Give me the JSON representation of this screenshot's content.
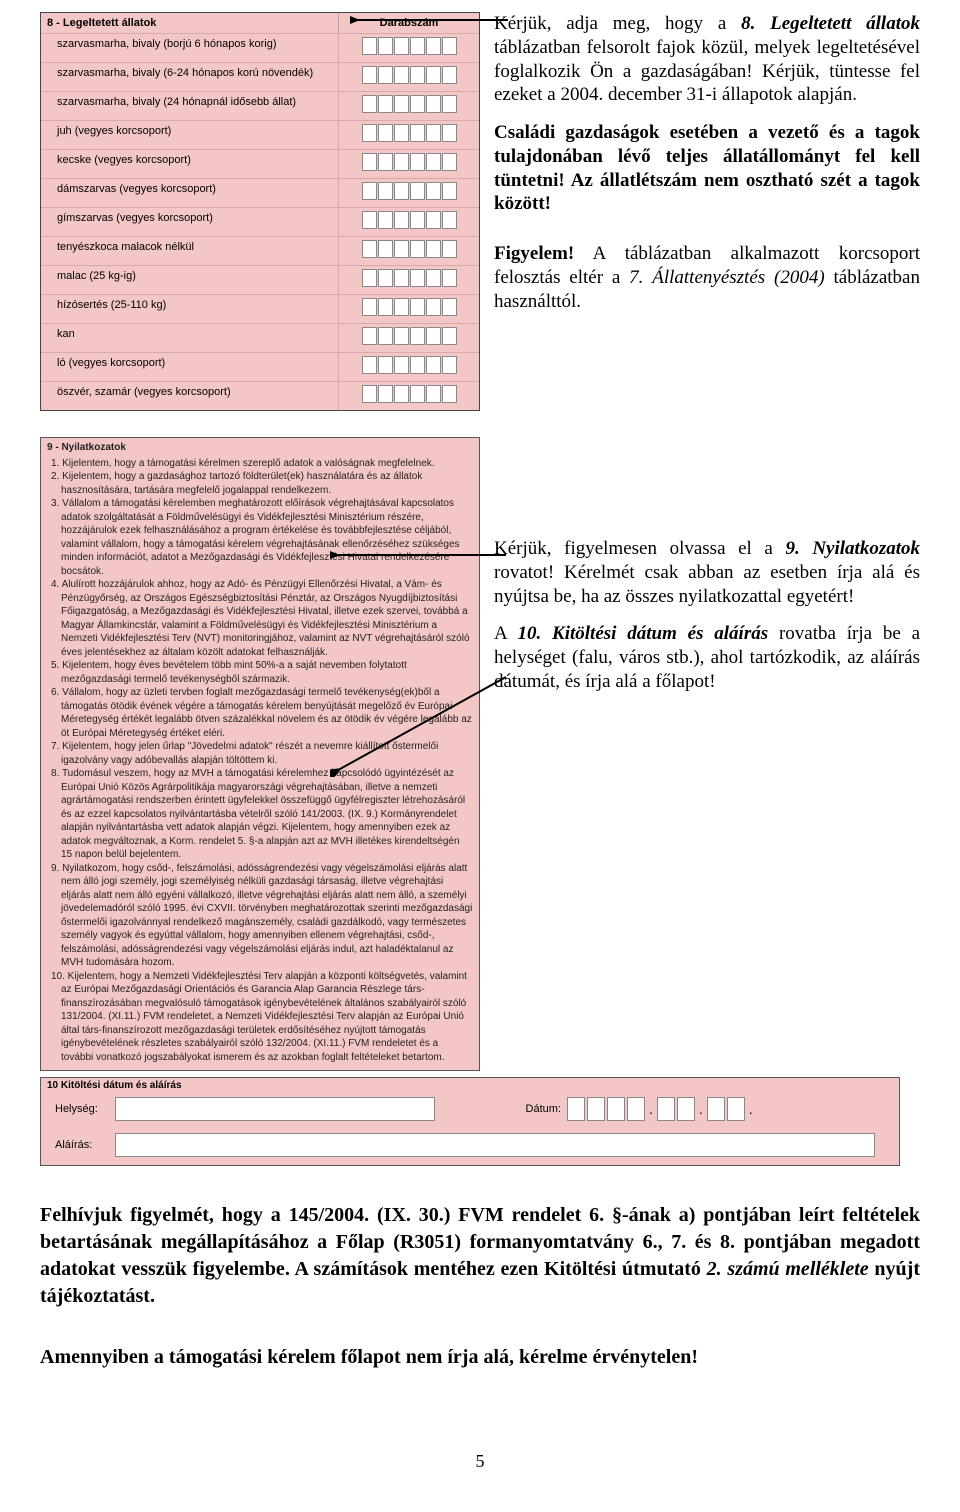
{
  "table8": {
    "title": "8 - Legeltetett állatok",
    "colhead": "Darabszám",
    "digits_per_row": 6,
    "rows": [
      "szarvasmarha, bivaly (borjú 6 hónapos korig)",
      "szarvasmarha, bivaly (6-24 hónapos korú növendék)",
      "szarvasmarha, bivaly (24 hónapnál idősebb állat)",
      "juh (vegyes korcsoport)",
      "kecske (vegyes korcsoport)",
      "dámszarvas (vegyes korcsoport)",
      "gímszarvas (vegyes korcsoport)",
      "tenyészkoca malacok nélkül",
      "malac (25 kg-ig)",
      "hízósertés (25-110 kg)",
      "kan",
      "ló (vegyes korcsoport)",
      "öszvér, szamár (vegyes korcsoport)"
    ]
  },
  "intro": {
    "p1a": "Kérjük, adja meg, hogy a ",
    "p1b": "8. Legeltetett állatok",
    "p1c": " táblázatban felsorolt fajok közül, melyek legeltetésével foglalkozik Ön a gazdaságában! Kérjük, tüntesse fel ezeket a 2004. december 31-i állapotok alapján.",
    "p2a": "Családi gazdaságok esetében a vezető és a tagok tulajdonában lévő teljes állatállományt fel kell tüntetni! Az állatlétszám nem osztható szét a tagok között!",
    "p3a": "Figyelem!",
    "p3b": " A táblázatban alkalmazott korcsoport felosztás eltér a ",
    "p3c": "7. Állattenyésztés (2004)",
    "p3d": " táblázatban használttól."
  },
  "nyil": {
    "section_title": "9 - Nyilatkozatok",
    "items": [
      "1. Kijelentem, hogy a támogatási kérelmen szereplő adatok a valóságnak megfelelnek.",
      "2. Kijelentem, hogy a gazdasághoz tartozó földterület(ek) használatára és az állatok hasznosítására, tartására megfelelő jogalappal rendelkezem.",
      "3. Vállalom a támogatási kérelemben meghatározott előírások végrehajtásával kapcsolatos adatok szolgáltatását a Földművelésügyi és Vidékfejlesztési Minisztérium részére, hozzájárulok ezek felhasználásához a program értékelése és továbbfejlesztése céljából, valamint vállalom, hogy a támogatási kérelem végrehajtásának ellenőrzéséhez szükséges minden információt, adatot a Mezőgazdasági és Vidékfejlesztési Hivatal rendelkezésére bocsátok.",
      "4. Alulírott hozzájárulok ahhoz, hogy az Adó- és Pénzügyi Ellenőrzési Hivatal, a Vám- és Pénzügyőrség, az Országos Egészségbiztosítási Pénztár, az Országos Nyugdíjbiztosítási Főigazgatóság, a Mezőgazdasági és Vidékfejlesztési Hivatal, illetve ezek szervei, továbbá a Magyar Államkincstár, valamint a Földművelésügyi és Vidékfejlesztési Minisztérium a Nemzeti Vidékfejlesztési Terv (NVT) monitoringjához, valamint az NVT végrehajtásáról szóló éves jelentésekhez az általam közölt adatokat felhasználják.",
      "5. Kijelentem, hogy éves bevételem több mint 50%-a a saját nevemben folytatott mezőgazdasági termelő tevékenységből származik.",
      "6. Vállalom, hogy az üzleti tervben foglalt mezőgazdasági termelő tevékenység(ek)ből a támogatás ötödik évének végére a támogatás kérelem benyújtását megelőző év Európai Méretegység értékét legalább ötven százalékkal növelem és az ötödik év végére legalább az öt Európai Méretegység értéket eléri.",
      "7. Kijelentem, hogy jelen űrlap \"Jövedelmi adatok\" részét a nevemre kiállított őstermelői igazolvány vagy adóbevallás alapján töltöttem ki.",
      "8. Tudomásul veszem, hogy az MVH a támogatási kérelemhez kapcsolódó ügyintézését az Európai Unió Közös Agrárpolitikája magyarországi végrehajtásában, illetve a nemzeti agrártámogatási rendszerben érintett ügyfelekkel összefüggő ügyfélregiszter létrehozásáról és az ezzel kapcsolatos nyilvántartásba vételről szóló 141/2003. (IX. 9.) Kormányrendelet alapján nyilvántartásba vett adatok alapján végzi. Kijelentem, hogy amennyiben ezek az adatok megváltoznak, a Korm. rendelet 5. §-a alapján azt az MVH illetékes kirendeltségén 15 napon belül bejelentem.",
      "9. Nyilatkozom, hogy csőd-, felszámolási, adósságrendezési vagy végelszámolási eljárás alatt nem álló jogi személy, jogi személyiség nélküli gazdasági társaság, illetve végrehajtási eljárás alatt nem álló egyéni vállalkozó, illetve végrehajtási eljárás alatt nem álló, a személyi jövedelemadóról szóló 1995. évi CXVII. törvényben meghatározottak szerinti mezőgazdasági őstermelői igazolvánnyal rendelkező magánszemély, családi gazdálkodó, vagy természetes személy vagyok és egyúttal vállalom, hogy amennyiben ellenem végrehajtási, csőd-, felszámolási, adósságrendezési vagy végelszámolási eljárás indul, azt haladéktalanul az MVH tudomására hozom.",
      "10. Kijelentem, hogy a Nemzeti Vidékfejlesztési Terv alapján a központi költségvetés, valamint az Európai Mezőgazdasági Orientációs és Garancia Alap Garancia Részlege társ-finanszírozásában megvalósuló támogatások igénybevételének általános szabályairól szóló 131/2004. (XI.11.) FVM rendeletet, a Nemzeti Vidékfejlesztési Terv alapján az Európai Unió által társ-finanszírozott mezőgazdasági területek erdősítéséhez nyújtott támogatás igénybevételének részletes szabályairól szóló 132/2004. (XI.11.) FVM rendeletet és a további vonatkozó jogszabályokat ismerem és az azokban foglalt feltételeket betartom."
    ]
  },
  "right2": {
    "p1a": "Kérjük, figyelmesen olvassa el a ",
    "p1b": "9. Nyilatkozatok",
    "p1c": " rovatot! Kérelmét csak abban az esetben írja alá és nyújtsa be, ha az összes nyilatkozattal egyetért!",
    "p2a": "A ",
    "p2b": "10. Kitöltési dátum és aláírás",
    "p2c": " rovatba írja be a helységet (falu, város stb.), ahol tartózkodik, az aláírás dátumát, és írja alá a főlapot!"
  },
  "sign": {
    "title": "10 Kitöltési dátum és aláírás",
    "helyseg": "Helység:",
    "datum": "Dátum:",
    "alairas": "Aláírás:"
  },
  "footer": {
    "para1a": "Felhívjuk figyelmét, hogy a 145/2004. (IX. 30.) FVM rendelet 6. §-ának a) pontjában leírt feltételek betartásának megállapításához a Főlap (R3051) formanyomtatvány 6., 7. és 8. pontjában megadott adatokat vesszük figyelembe. A számítások mentéhez ezen Kitöltési útmutató ",
    "para1b": "2. számú melléklete",
    "para1c": " nyújt tájékoztatást.",
    "para2": "Amennyiben a támogatási kérelem főlapot nem írja alá, kérelme érvénytelen!",
    "pagenum": "5"
  },
  "style": {
    "form_bg": "#f3c7c6"
  }
}
